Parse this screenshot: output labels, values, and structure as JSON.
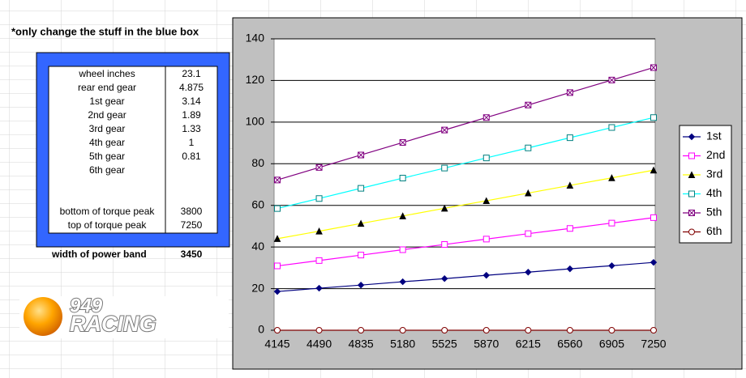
{
  "note": "*only change the stuff in the blue box",
  "table": {
    "rows": [
      {
        "label": "wheel inches",
        "value": 23.1
      },
      {
        "label": "rear end gear",
        "value": 4.875
      },
      {
        "label": "1st gear",
        "value": 3.14
      },
      {
        "label": "2nd gear",
        "value": 1.89
      },
      {
        "label": "3rd gear",
        "value": 1.33
      },
      {
        "label": "4th gear",
        "value": 1
      },
      {
        "label": "5th gear",
        "value": 0.81
      },
      {
        "label": "6th gear"
      },
      {
        "label": "bottom of torque peak",
        "value": 3800
      },
      {
        "label": "top of torque peak",
        "value": 7250
      }
    ],
    "result": {
      "label": "width of power band",
      "value": 3450
    }
  },
  "logo": {
    "line1": "949",
    "line2": "RACING"
  },
  "chart_data": {
    "type": "line",
    "categories": [
      4145,
      4490,
      4835,
      5180,
      5525,
      5870,
      6215,
      6560,
      6905,
      7250
    ],
    "ylim": [
      0,
      140
    ],
    "yticks": [
      0,
      20,
      40,
      60,
      80,
      100,
      120,
      140
    ],
    "grid": true,
    "legend": "right",
    "series": [
      {
        "name": "1st",
        "color": "#000080",
        "marker": "diamond",
        "values": [
          18.6,
          20.2,
          21.7,
          23.3,
          24.8,
          26.4,
          27.9,
          29.5,
          31.0,
          32.6
        ]
      },
      {
        "name": "2nd",
        "color": "#ff00ff",
        "marker": "square",
        "values": [
          30.9,
          33.5,
          36.1,
          38.7,
          41.2,
          43.8,
          46.4,
          48.9,
          51.5,
          54.1
        ]
      },
      {
        "name": "3rd",
        "color": "#ffff00",
        "marker": "triangle",
        "values": [
          44.0,
          47.6,
          51.3,
          54.9,
          58.6,
          62.2,
          65.9,
          69.6,
          73.2,
          76.9
        ]
      },
      {
        "name": "4th",
        "color": "#00ffff",
        "marker": "square",
        "values": [
          58.5,
          63.3,
          68.2,
          73.1,
          77.9,
          82.8,
          87.6,
          92.5,
          97.4,
          102.2
        ]
      },
      {
        "name": "5th",
        "color": "#800080",
        "marker": "xsquare",
        "values": [
          72.2,
          78.2,
          84.2,
          90.2,
          96.2,
          102.2,
          108.2,
          114.2,
          120.2,
          126.2
        ]
      },
      {
        "name": "6th",
        "color": "#800000",
        "marker": "circle",
        "values": [
          0,
          0,
          0,
          0,
          0,
          0,
          0,
          0,
          0,
          0
        ]
      }
    ]
  }
}
